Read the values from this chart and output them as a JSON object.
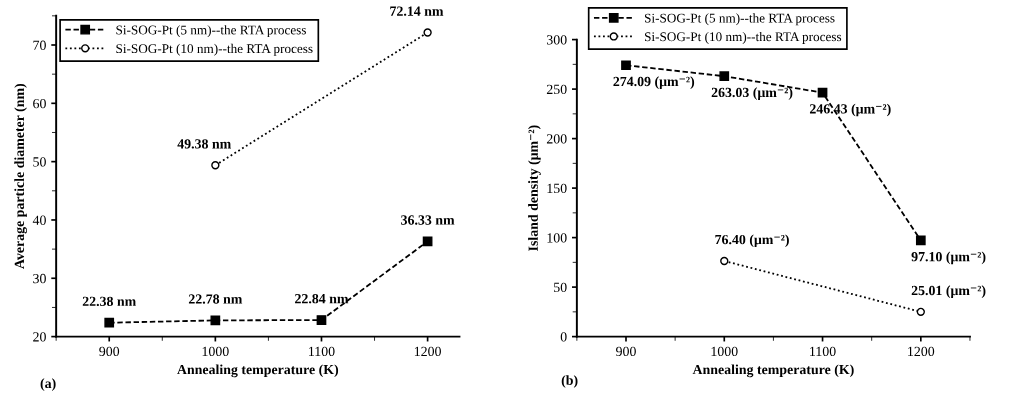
{
  "chart_data": [
    {
      "type": "line",
      "xlabel": "Annealing temperature (K)",
      "ylabel": "Average particle diameter (nm)",
      "annotations": [
        "(a)"
      ],
      "xlim": [
        850,
        1230
      ],
      "xticks": [
        900,
        1000,
        1100,
        1200
      ],
      "ylim": [
        20,
        75
      ],
      "yticks": [
        20,
        30,
        40,
        50,
        60,
        70
      ],
      "legend": "top left",
      "grid": false,
      "series": [
        {
          "name": "Si-SOG-Pt (5 nm)--the RTA process",
          "color": "#000000",
          "x": [
            900,
            1000,
            1100,
            1200
          ],
          "values": [
            22.38,
            22.78,
            22.84,
            36.33
          ],
          "value_labels": [
            "22.38 nm",
            "22.78 nm",
            "22.84 nm",
            "36.33 nm"
          ],
          "marker": "square",
          "line_style": "dashed"
        },
        {
          "name": "Si-SOG-Pt (10 nm)--the RTA process",
          "color": "#000000",
          "x": [
            1000,
            1200
          ],
          "values": [
            49.38,
            72.14
          ],
          "value_labels": [
            "49.38 nm",
            "72.14 nm"
          ],
          "marker": "circle",
          "line_style": "dotted"
        }
      ]
    },
    {
      "type": "line",
      "xlabel": "Annealing temperature (K)",
      "ylabel": "Island density (μm⁻²)",
      "annotations": [
        "(b)"
      ],
      "xlim": [
        850,
        1250
      ],
      "xticks": [
        900,
        1000,
        1100,
        1200
      ],
      "ylim": [
        0,
        300
      ],
      "yticks": [
        0,
        50,
        100,
        150,
        200,
        250,
        300
      ],
      "legend": "top left",
      "grid": false,
      "series": [
        {
          "name": "Si-SOG-Pt (5 nm)--the RTA process",
          "color": "#000000",
          "x": [
            900,
            1000,
            1100,
            1200
          ],
          "values": [
            274.09,
            263.03,
            246.43,
            97.1
          ],
          "value_labels": [
            "274.09 (μm⁻²)",
            "263.03 (μm⁻²)",
            "246.43 (μm⁻²)",
            "97.10 (μm⁻²)"
          ],
          "marker": "square",
          "line_style": "dashed"
        },
        {
          "name": "Si-SOG-Pt (10 nm)--the RTA process",
          "color": "#000000",
          "x": [
            1000,
            1200
          ],
          "values": [
            76.4,
            25.01
          ],
          "value_labels": [
            "76.40 (μm⁻²)",
            "25.01 (μm⁻²)"
          ],
          "marker": "circle",
          "line_style": "dotted"
        }
      ]
    }
  ]
}
